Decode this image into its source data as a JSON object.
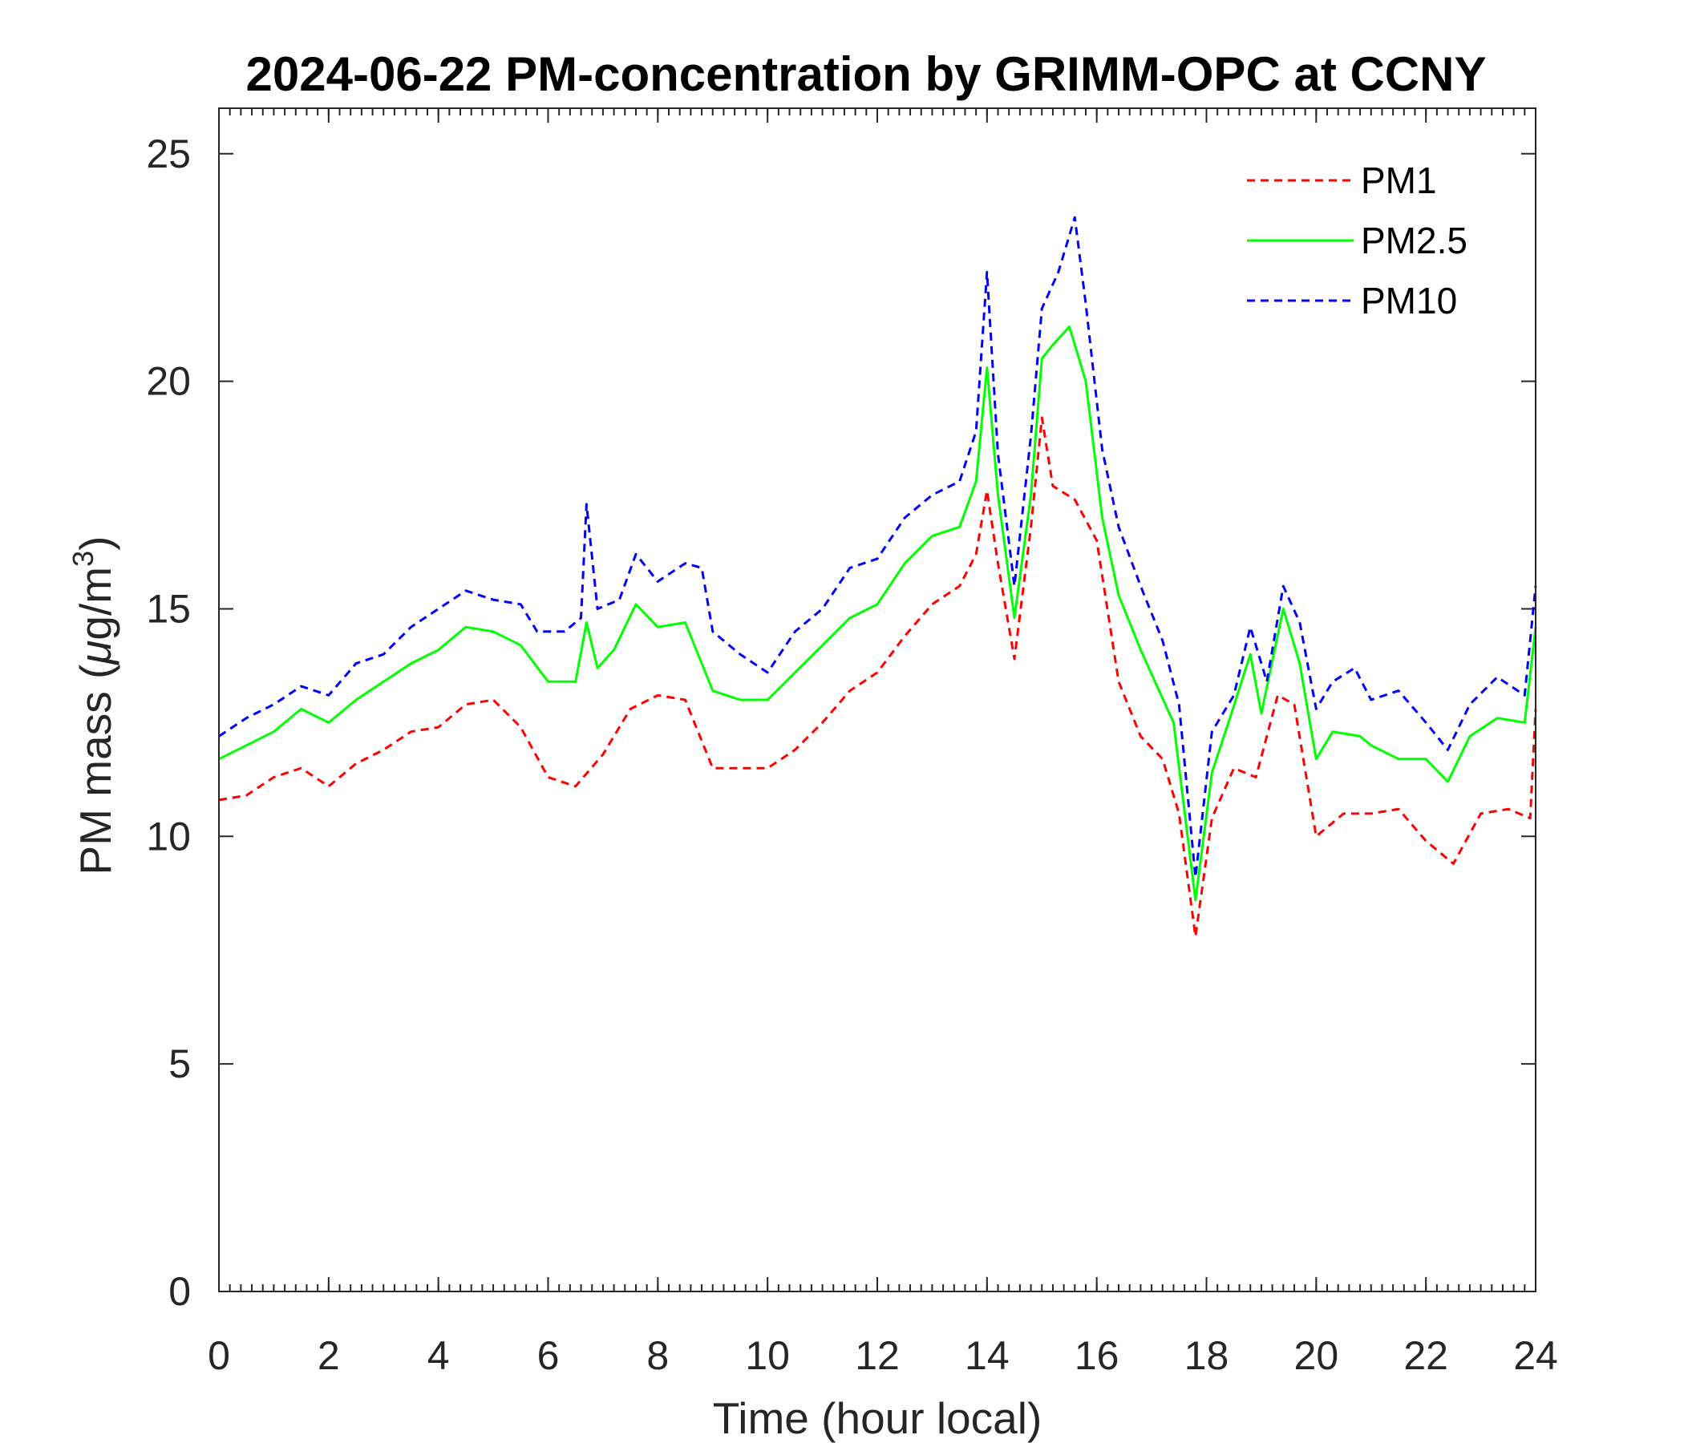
{
  "chart_data": {
    "type": "line",
    "title": "2024-06-22 PM-concentration by GRIMM-OPC at CCNY",
    "xlabel": "Time (hour local)",
    "ylabel_main": "PM mass (",
    "ylabel_mu": "μ",
    "ylabel_unit": "g/m",
    "ylabel_sup": "3",
    "ylabel_close": ")",
    "xlim": [
      0,
      24
    ],
    "ylim": [
      0,
      26
    ],
    "x_ticks": [
      0,
      2,
      4,
      6,
      8,
      10,
      12,
      14,
      16,
      18,
      20,
      22,
      24
    ],
    "y_ticks": [
      0,
      5,
      10,
      15,
      20,
      25
    ],
    "grid": false,
    "legend_position": "top-right",
    "series": [
      {
        "name": "PM1",
        "color": "#ff0000",
        "style": "dashed",
        "points": [
          [
            0,
            10.8
          ],
          [
            0.5,
            10.9
          ],
          [
            1,
            11.3
          ],
          [
            1.5,
            11.5
          ],
          [
            2,
            11.1
          ],
          [
            2.5,
            11.6
          ],
          [
            3,
            11.9
          ],
          [
            3.5,
            12.3
          ],
          [
            4,
            12.4
          ],
          [
            4.5,
            12.9
          ],
          [
            5,
            13.0
          ],
          [
            5.5,
            12.4
          ],
          [
            6,
            11.3
          ],
          [
            6.5,
            11.1
          ],
          [
            7,
            11.8
          ],
          [
            7.5,
            12.8
          ],
          [
            8,
            13.1
          ],
          [
            8.5,
            13.0
          ],
          [
            9,
            11.5
          ],
          [
            9.5,
            11.5
          ],
          [
            10,
            11.5
          ],
          [
            10.5,
            11.9
          ],
          [
            11,
            12.5
          ],
          [
            11.5,
            13.2
          ],
          [
            12,
            13.6
          ],
          [
            12.5,
            14.4
          ],
          [
            13,
            15.1
          ],
          [
            13.5,
            15.5
          ],
          [
            13.8,
            16.2
          ],
          [
            14,
            17.6
          ],
          [
            14.2,
            16.0
          ],
          [
            14.5,
            13.9
          ],
          [
            14.8,
            16.8
          ],
          [
            15,
            19.2
          ],
          [
            15.2,
            17.7
          ],
          [
            15.6,
            17.4
          ],
          [
            16,
            16.5
          ],
          [
            16.4,
            13.4
          ],
          [
            16.8,
            12.2
          ],
          [
            17.2,
            11.7
          ],
          [
            17.5,
            10.5
          ],
          [
            17.8,
            7.8
          ],
          [
            18.1,
            10.4
          ],
          [
            18.5,
            11.5
          ],
          [
            18.9,
            11.3
          ],
          [
            19.3,
            13.1
          ],
          [
            19.6,
            12.9
          ],
          [
            20,
            10.0
          ],
          [
            20.5,
            10.5
          ],
          [
            21,
            10.5
          ],
          [
            21.5,
            10.6
          ],
          [
            22,
            9.9
          ],
          [
            22.5,
            9.4
          ],
          [
            23,
            10.5
          ],
          [
            23.5,
            10.6
          ],
          [
            23.9,
            10.4
          ],
          [
            24,
            12.8
          ]
        ]
      },
      {
        "name": "PM2.5",
        "color": "#00ff00",
        "style": "solid",
        "points": [
          [
            0,
            11.7
          ],
          [
            0.5,
            12.0
          ],
          [
            1,
            12.3
          ],
          [
            1.5,
            12.8
          ],
          [
            2,
            12.5
          ],
          [
            2.5,
            13.0
          ],
          [
            3,
            13.4
          ],
          [
            3.5,
            13.8
          ],
          [
            4,
            14.1
          ],
          [
            4.5,
            14.6
          ],
          [
            5,
            14.5
          ],
          [
            5.5,
            14.2
          ],
          [
            6,
            13.4
          ],
          [
            6.5,
            13.4
          ],
          [
            6.7,
            14.7
          ],
          [
            6.9,
            13.7
          ],
          [
            7.2,
            14.1
          ],
          [
            7.6,
            15.1
          ],
          [
            8,
            14.6
          ],
          [
            8.5,
            14.7
          ],
          [
            9,
            13.2
          ],
          [
            9.5,
            13.0
          ],
          [
            10,
            13.0
          ],
          [
            10.5,
            13.6
          ],
          [
            11,
            14.2
          ],
          [
            11.5,
            14.8
          ],
          [
            12,
            15.1
          ],
          [
            12.5,
            16.0
          ],
          [
            13,
            16.6
          ],
          [
            13.5,
            16.8
          ],
          [
            13.8,
            17.8
          ],
          [
            14,
            20.3
          ],
          [
            14.2,
            17.5
          ],
          [
            14.5,
            14.8
          ],
          [
            14.8,
            17.5
          ],
          [
            15,
            20.5
          ],
          [
            15.2,
            20.8
          ],
          [
            15.5,
            21.2
          ],
          [
            15.8,
            20.0
          ],
          [
            16.1,
            17.0
          ],
          [
            16.4,
            15.3
          ],
          [
            16.8,
            14.1
          ],
          [
            17.1,
            13.3
          ],
          [
            17.4,
            12.5
          ],
          [
            17.8,
            8.6
          ],
          [
            18.1,
            11.4
          ],
          [
            18.4,
            12.5
          ],
          [
            18.8,
            14.0
          ],
          [
            19.0,
            12.7
          ],
          [
            19.4,
            15.0
          ],
          [
            19.7,
            13.8
          ],
          [
            20,
            11.7
          ],
          [
            20.3,
            12.3
          ],
          [
            20.8,
            12.2
          ],
          [
            21,
            12.0
          ],
          [
            21.5,
            11.7
          ],
          [
            22,
            11.7
          ],
          [
            22.4,
            11.2
          ],
          [
            22.8,
            12.2
          ],
          [
            23.3,
            12.6
          ],
          [
            23.8,
            12.5
          ],
          [
            24,
            14.6
          ]
        ]
      },
      {
        "name": "PM10",
        "color": "#0000ff",
        "style": "dashed",
        "points": [
          [
            0,
            12.2
          ],
          [
            0.5,
            12.6
          ],
          [
            1,
            12.9
          ],
          [
            1.5,
            13.3
          ],
          [
            2,
            13.1
          ],
          [
            2.5,
            13.8
          ],
          [
            3,
            14.0
          ],
          [
            3.5,
            14.6
          ],
          [
            4,
            15.0
          ],
          [
            4.5,
            15.4
          ],
          [
            5,
            15.2
          ],
          [
            5.5,
            15.1
          ],
          [
            5.8,
            14.5
          ],
          [
            6.3,
            14.5
          ],
          [
            6.6,
            14.8
          ],
          [
            6.7,
            17.3
          ],
          [
            6.9,
            15.0
          ],
          [
            7.3,
            15.2
          ],
          [
            7.6,
            16.2
          ],
          [
            8,
            15.6
          ],
          [
            8.5,
            16.0
          ],
          [
            8.8,
            15.9
          ],
          [
            9,
            14.5
          ],
          [
            9.5,
            14.0
          ],
          [
            10,
            13.6
          ],
          [
            10.5,
            14.5
          ],
          [
            11,
            15.0
          ],
          [
            11.5,
            15.9
          ],
          [
            12,
            16.1
          ],
          [
            12.5,
            17.0
          ],
          [
            13,
            17.5
          ],
          [
            13.5,
            17.8
          ],
          [
            13.8,
            18.9
          ],
          [
            14,
            22.4
          ],
          [
            14.2,
            18.4
          ],
          [
            14.5,
            15.5
          ],
          [
            14.8,
            18.8
          ],
          [
            15,
            21.6
          ],
          [
            15.3,
            22.4
          ],
          [
            15.6,
            23.6
          ],
          [
            15.8,
            21.7
          ],
          [
            16.1,
            18.5
          ],
          [
            16.4,
            16.8
          ],
          [
            16.8,
            15.5
          ],
          [
            17.2,
            14.3
          ],
          [
            17.5,
            12.9
          ],
          [
            17.8,
            9.1
          ],
          [
            18.1,
            12.3
          ],
          [
            18.5,
            13.1
          ],
          [
            18.8,
            14.6
          ],
          [
            19.1,
            13.4
          ],
          [
            19.4,
            15.5
          ],
          [
            19.7,
            14.7
          ],
          [
            20,
            12.8
          ],
          [
            20.3,
            13.4
          ],
          [
            20.7,
            13.7
          ],
          [
            21,
            13.0
          ],
          [
            21.5,
            13.2
          ],
          [
            22,
            12.5
          ],
          [
            22.4,
            11.9
          ],
          [
            22.8,
            12.9
          ],
          [
            23.3,
            13.5
          ],
          [
            23.8,
            13.1
          ],
          [
            24,
            15.5
          ]
        ]
      }
    ]
  }
}
